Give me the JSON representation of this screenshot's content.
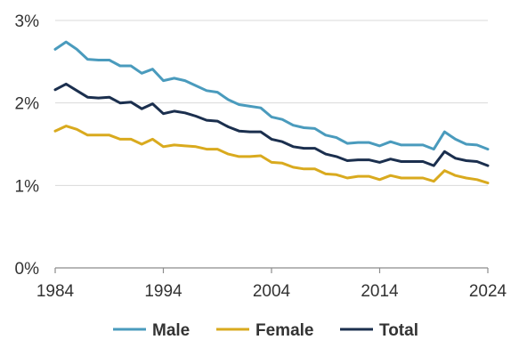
{
  "chart_data": {
    "type": "line",
    "title": "",
    "xlabel": "",
    "ylabel": "",
    "xlim": [
      1984,
      2024
    ],
    "ylim": [
      0,
      3
    ],
    "x_ticks": [
      1984,
      1994,
      2004,
      2014,
      2024
    ],
    "x_tick_labels": [
      "1984",
      "1994",
      "2004",
      "2014",
      "2024"
    ],
    "y_ticks": [
      0,
      1,
      2,
      3
    ],
    "y_tick_labels": [
      "0%",
      "1%",
      "2%",
      "3%"
    ],
    "grid": "horizontal",
    "legend_position": "bottom",
    "x": [
      1984,
      1985,
      1986,
      1987,
      1988,
      1989,
      1990,
      1991,
      1992,
      1993,
      1994,
      1995,
      1996,
      1997,
      1998,
      1999,
      2000,
      2001,
      2002,
      2003,
      2004,
      2005,
      2006,
      2007,
      2008,
      2009,
      2010,
      2011,
      2012,
      2013,
      2014,
      2015,
      2016,
      2017,
      2018,
      2019,
      2020,
      2021,
      2022,
      2023,
      2024
    ],
    "series": [
      {
        "name": "Male",
        "color": "#4a9bbd",
        "values": [
          2.65,
          2.74,
          2.65,
          2.53,
          2.52,
          2.52,
          2.45,
          2.45,
          2.36,
          2.41,
          2.27,
          2.3,
          2.27,
          2.21,
          2.15,
          2.13,
          2.04,
          1.98,
          1.96,
          1.94,
          1.83,
          1.8,
          1.73,
          1.7,
          1.69,
          1.61,
          1.58,
          1.51,
          1.52,
          1.52,
          1.48,
          1.53,
          1.49,
          1.49,
          1.49,
          1.44,
          1.65,
          1.56,
          1.5,
          1.49,
          1.44
        ]
      },
      {
        "name": "Female",
        "color": "#d9aa1e",
        "values": [
          1.66,
          1.72,
          1.68,
          1.61,
          1.61,
          1.61,
          1.56,
          1.56,
          1.5,
          1.56,
          1.47,
          1.49,
          1.48,
          1.47,
          1.44,
          1.44,
          1.38,
          1.35,
          1.35,
          1.36,
          1.28,
          1.27,
          1.22,
          1.2,
          1.2,
          1.14,
          1.13,
          1.09,
          1.11,
          1.11,
          1.07,
          1.12,
          1.09,
          1.09,
          1.09,
          1.05,
          1.18,
          1.12,
          1.09,
          1.07,
          1.03
        ]
      },
      {
        "name": "Total",
        "color": "#1b2f4e",
        "values": [
          2.16,
          2.23,
          2.15,
          2.07,
          2.06,
          2.07,
          2.0,
          2.01,
          1.93,
          1.99,
          1.87,
          1.9,
          1.88,
          1.84,
          1.79,
          1.78,
          1.71,
          1.66,
          1.65,
          1.65,
          1.56,
          1.53,
          1.47,
          1.45,
          1.45,
          1.38,
          1.35,
          1.3,
          1.31,
          1.31,
          1.28,
          1.32,
          1.29,
          1.29,
          1.29,
          1.24,
          1.41,
          1.33,
          1.3,
          1.29,
          1.24
        ]
      }
    ]
  }
}
